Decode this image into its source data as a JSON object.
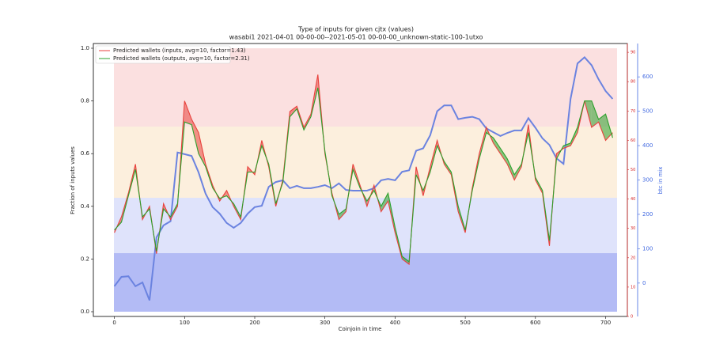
{
  "chart_data": {
    "type": "line",
    "title": "Type of inputs for given cjtx (values)",
    "subtitle": "wasabi1 2021-04-01 00-00-00--2021-05-01 00-00-00_unknown-static-100-1utxo",
    "xlabel": "Coinjoin in time",
    "ylabel": "Fraction of inputs values",
    "y3label": "btc in mix",
    "xlim": [
      -30,
      731
    ],
    "xticks": [
      0,
      100,
      200,
      300,
      400,
      500,
      600,
      700
    ],
    "ylim": [
      -0.018,
      1.018
    ],
    "yticks": [
      0.0,
      0.2,
      0.4,
      0.6,
      0.8,
      1.0
    ],
    "y2lim": [
      0,
      93
    ],
    "y2ticks": [
      0,
      10,
      20,
      30,
      40,
      50,
      60,
      70,
      80,
      90
    ],
    "y2color": "#d62728",
    "y3lim": [
      -97,
      697
    ],
    "y3ticks": [
      0,
      100,
      200,
      300,
      400,
      500,
      600
    ],
    "y3color": "#4169e1",
    "legend": "upper left",
    "x": [
      0,
      10,
      20,
      30,
      40,
      50,
      60,
      70,
      80,
      90,
      100,
      110,
      120,
      130,
      140,
      150,
      160,
      170,
      180,
      190,
      200,
      210,
      220,
      230,
      240,
      250,
      260,
      270,
      280,
      290,
      300,
      310,
      320,
      330,
      340,
      350,
      360,
      370,
      380,
      390,
      400,
      410,
      420,
      430,
      440,
      450,
      460,
      470,
      480,
      490,
      500,
      510,
      520,
      530,
      540,
      550,
      560,
      570,
      580,
      590,
      600,
      610,
      620,
      630,
      640,
      650,
      660,
      670,
      680,
      690,
      700,
      710
    ],
    "series": [
      {
        "name": "Predicted wallets (inputs, avg=10, factor=1.43)",
        "color": "#e8413c",
        "legend": true,
        "values": [
          0.3,
          0.36,
          0.45,
          0.56,
          0.35,
          0.4,
          0.22,
          0.41,
          0.35,
          0.4,
          0.8,
          0.73,
          0.68,
          0.56,
          0.48,
          0.42,
          0.46,
          0.4,
          0.35,
          0.55,
          0.52,
          0.65,
          0.55,
          0.4,
          0.5,
          0.76,
          0.78,
          0.7,
          0.75,
          0.9,
          0.6,
          0.45,
          0.35,
          0.38,
          0.56,
          0.48,
          0.4,
          0.48,
          0.38,
          0.42,
          0.3,
          0.2,
          0.18,
          0.55,
          0.44,
          0.55,
          0.65,
          0.56,
          0.52,
          0.38,
          0.3,
          0.47,
          0.6,
          0.7,
          0.64,
          0.6,
          0.56,
          0.5,
          0.55,
          0.71,
          0.5,
          0.45,
          0.25,
          0.6,
          0.62,
          0.63,
          0.68,
          0.8,
          0.7,
          0.72,
          0.65,
          0.68
        ]
      },
      {
        "name": "Predicted wallets (outputs, avg=10, factor=2.31)",
        "color": "#2ca02c",
        "legend": true,
        "values": [
          0.31,
          0.34,
          0.44,
          0.54,
          0.36,
          0.39,
          0.23,
          0.39,
          0.36,
          0.41,
          0.72,
          0.71,
          0.6,
          0.55,
          0.47,
          0.43,
          0.44,
          0.41,
          0.36,
          0.53,
          0.53,
          0.63,
          0.56,
          0.41,
          0.49,
          0.74,
          0.77,
          0.69,
          0.74,
          0.85,
          0.61,
          0.44,
          0.37,
          0.39,
          0.54,
          0.47,
          0.42,
          0.46,
          0.4,
          0.45,
          0.32,
          0.21,
          0.19,
          0.52,
          0.46,
          0.53,
          0.63,
          0.57,
          0.53,
          0.4,
          0.31,
          0.46,
          0.58,
          0.68,
          0.66,
          0.62,
          0.58,
          0.52,
          0.56,
          0.68,
          0.51,
          0.46,
          0.27,
          0.58,
          0.63,
          0.64,
          0.7,
          0.8,
          0.8,
          0.73,
          0.75,
          0.66
        ]
      },
      {
        "name": "btc in mix",
        "color": "#6b83e0",
        "axis": "y3",
        "legend": false,
        "values": [
          -9,
          18,
          20,
          -9,
          2,
          -50,
          133,
          168,
          180,
          380,
          375,
          370,
          322,
          260,
          221,
          202,
          175,
          161,
          175,
          202,
          221,
          225,
          280,
          294,
          299,
          276,
          283,
          276,
          276,
          280,
          285,
          276,
          290,
          271,
          269,
          269,
          269,
          276,
          299,
          303,
          299,
          324,
          328,
          385,
          392,
          430,
          500,
          517,
          517,
          477,
          481,
          484,
          477,
          450,
          439,
          428,
          437,
          444,
          444,
          480,
          452,
          421,
          402,
          363,
          347,
          536,
          639,
          657,
          634,
          593,
          559,
          536
        ]
      }
    ]
  }
}
